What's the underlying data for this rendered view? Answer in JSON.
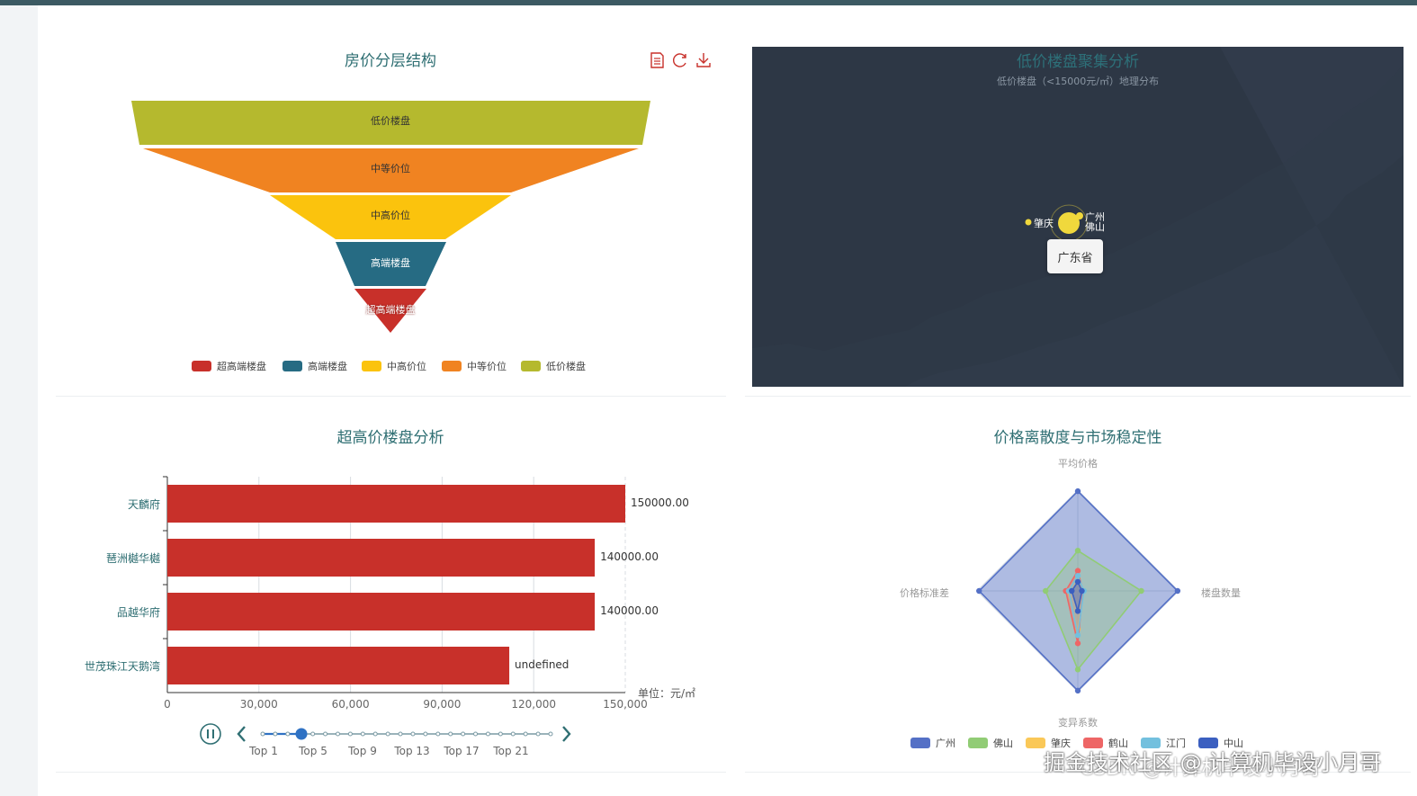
{
  "funnel": {
    "title": "房价分层结构",
    "toolbar": {
      "data_view": "data-view-icon",
      "restore": "refresh-icon",
      "save": "download-icon"
    },
    "stages": [
      {
        "label": "低价楼盘",
        "color": "#b5b92e"
      },
      {
        "label": "中等价位",
        "color": "#f08321"
      },
      {
        "label": "中高价位",
        "color": "#fbc30d"
      },
      {
        "label": "高端楼盘",
        "color": "#266b83"
      },
      {
        "label": "超高端楼盘",
        "color": "#c8302a"
      }
    ],
    "legend": [
      {
        "label": "超高端楼盘",
        "color": "#c8302a"
      },
      {
        "label": "高端楼盘",
        "color": "#266b83"
      },
      {
        "label": "中高价位",
        "color": "#fbc30d"
      },
      {
        "label": "中等价位",
        "color": "#f08321"
      },
      {
        "label": "低价楼盘",
        "color": "#b5b92e"
      }
    ]
  },
  "map": {
    "title": "低价楼盘聚集分析",
    "subtitle": "低价楼盘（<15000元/㎡）地理分布",
    "labels": [
      "肇庆",
      "广州",
      "佛山"
    ],
    "tooltip": "广东省",
    "colors": {
      "land": "#2d3745",
      "point": "#f0d83c"
    }
  },
  "bar": {
    "title": "超高价楼盘分析",
    "unit": "单位：元/㎡",
    "timeline": [
      "Top 1",
      "Top 5",
      "Top 9",
      "Top 13",
      "Top 17",
      "Top 21"
    ],
    "timeline_selected": "Top 1"
  },
  "radar": {
    "title": "价格离散度与市场稳定性",
    "indicators": [
      "平均价格",
      "楼盘数量",
      "变异系数",
      "价格标准差"
    ],
    "legend": [
      {
        "label": "广州",
        "color": "#5470c6"
      },
      {
        "label": "佛山",
        "color": "#91cc75"
      },
      {
        "label": "肇庆",
        "color": "#fac858"
      },
      {
        "label": "鹤山",
        "color": "#ee6666"
      },
      {
        "label": "江门",
        "color": "#73c0de"
      },
      {
        "label": "中山",
        "color": "#3b5fc0"
      }
    ]
  },
  "watermark": {
    "main": "掘金技术社区 @ 计算机毕设小月哥",
    "sub": "CSDN @计算机毕设小月哥"
  },
  "chart_data": [
    {
      "type": "bar",
      "title": "超高价楼盘分析",
      "categories": [
        "天麟府",
        "琶洲樾华樾",
        "品越华府",
        "世茂珠江天鹅湾"
      ],
      "values": [
        150000,
        140000,
        140000,
        112000
      ],
      "value_labels": [
        "150000.00",
        "140000.00",
        "140000.00",
        "undefined"
      ],
      "xlim": [
        0,
        150000
      ],
      "xticks": [
        "0",
        "30,000",
        "60,000",
        "90,000",
        "120,000",
        "150,000"
      ],
      "unit": "单位：元/㎡",
      "grid": true
    },
    {
      "type": "radar",
      "title": "价格离散度与市场稳定性",
      "indicators": [
        "平均价格",
        "楼盘数量",
        "变异系数",
        "价格标准差"
      ],
      "series": [
        {
          "name": "广州",
          "values": [
            0.99,
            0.99,
            0.99,
            0.98
          ]
        },
        {
          "name": "佛山",
          "values": [
            0.4,
            0.63,
            0.78,
            0.32
          ]
        },
        {
          "name": "肇庆",
          "values": [
            0.12,
            0.05,
            0.38,
            0.1
          ]
        },
        {
          "name": "鹤山",
          "values": [
            0.2,
            0.05,
            0.52,
            0.12
          ]
        },
        {
          "name": "江门",
          "values": [
            0.15,
            0.06,
            0.44,
            0.09
          ]
        },
        {
          "name": "中山",
          "values": [
            0.09,
            0.04,
            0.2,
            0.06
          ]
        }
      ]
    }
  ]
}
